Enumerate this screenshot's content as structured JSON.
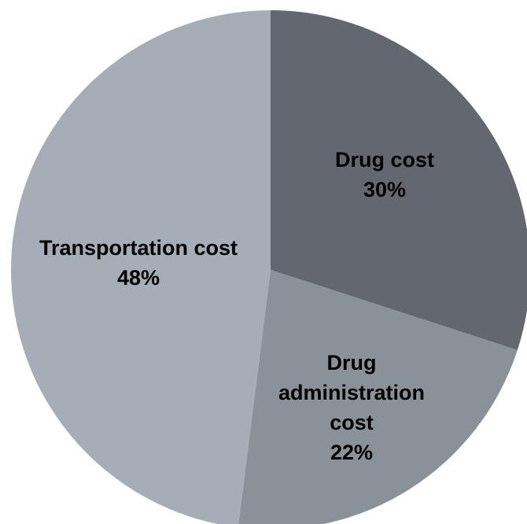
{
  "chart_data": {
    "type": "pie",
    "start_angle_deg": 0,
    "direction": "clockwise",
    "slices": [
      {
        "label_lines": [
          "Drug cost"
        ],
        "value": 30,
        "value_label": "30%",
        "color": "#636870"
      },
      {
        "label_lines": [
          "Drug",
          "administration",
          "cost"
        ],
        "value": 22,
        "value_label": "22%",
        "color": "#8a9299"
      },
      {
        "label_lines": [
          "Transportation cost"
        ],
        "value": 48,
        "value_label": "48%",
        "color": "#a5aeb7"
      }
    ]
  }
}
